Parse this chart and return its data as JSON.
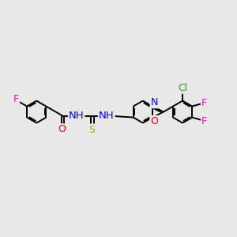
{
  "bg_color": "#e8e8e8",
  "atom_colors": {
    "F": "#ff00cc",
    "O": "#ff0000",
    "N": "#0000ff",
    "S": "#aaaa00",
    "Cl": "#00bb00",
    "C": "#000000"
  },
  "font_size": 8.5,
  "lw": 1.4
}
